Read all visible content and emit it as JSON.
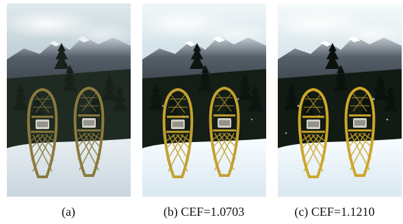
{
  "figure": {
    "panels": [
      {
        "caption": "(a)",
        "variant": "original"
      },
      {
        "caption": "(b) CEF=1.0703",
        "variant": "enhanced"
      },
      {
        "caption": "(c) CEF=1.1210",
        "variant": "enhanced-strong"
      }
    ]
  },
  "scene": {
    "subject": "two wooden snowshoes standing upright in snow",
    "background": "snowy mountain range under a cloudy sky with dark pine trees"
  }
}
